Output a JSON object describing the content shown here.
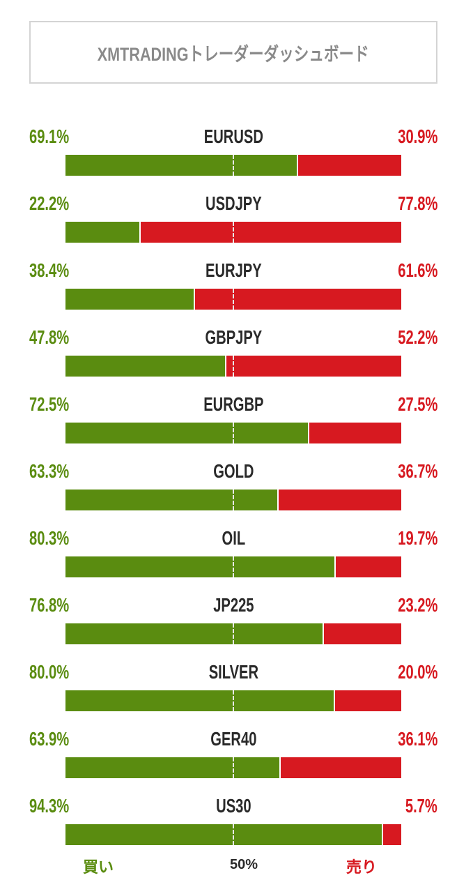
{
  "header": {
    "title": "XMTRADINGトレーダーダッシュボード"
  },
  "rows": [
    {
      "symbol": "EURUSD",
      "buy": "69.1%",
      "sell": "30.9%",
      "buy_value": 69.1
    },
    {
      "symbol": "USDJPY",
      "buy": "22.2%",
      "sell": "77.8%",
      "buy_value": 22.2
    },
    {
      "symbol": "EURJPY",
      "buy": "38.4%",
      "sell": "61.6%",
      "buy_value": 38.4
    },
    {
      "symbol": "GBPJPY",
      "buy": "47.8%",
      "sell": "52.2%",
      "buy_value": 47.8
    },
    {
      "symbol": "EURGBP",
      "buy": "72.5%",
      "sell": "27.5%",
      "buy_value": 72.5
    },
    {
      "symbol": "GOLD",
      "buy": "63.3%",
      "sell": "36.7%",
      "buy_value": 63.3
    },
    {
      "symbol": "OIL",
      "buy": "80.3%",
      "sell": "19.7%",
      "buy_value": 80.3
    },
    {
      "symbol": "JP225",
      "buy": "76.8%",
      "sell": "23.2%",
      "buy_value": 76.8
    },
    {
      "symbol": "SILVER",
      "buy": "80.0%",
      "sell": "20.0%",
      "buy_value": 80.0
    },
    {
      "symbol": "GER40",
      "buy": "63.9%",
      "sell": "36.1%",
      "buy_value": 63.9
    },
    {
      "symbol": "US30",
      "buy": "94.3%",
      "sell": "5.7%",
      "buy_value": 94.3
    }
  ],
  "legend": {
    "buy": "買い",
    "mid": "50%",
    "sell": "売り"
  },
  "colors": {
    "buy": "#5a8c10",
    "sell": "#d71920"
  }
}
